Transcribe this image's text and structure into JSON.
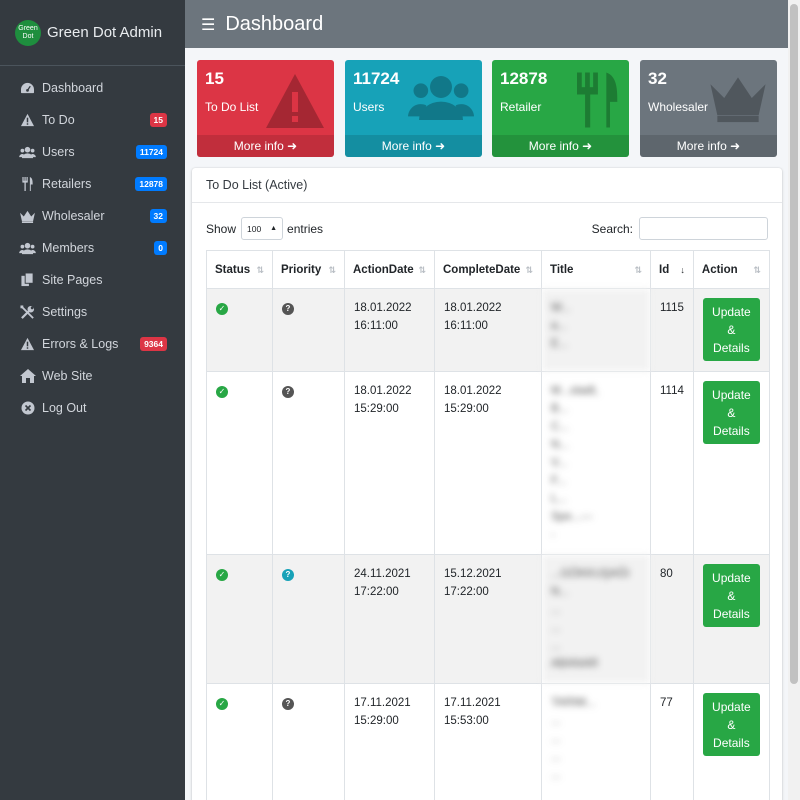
{
  "brand": {
    "name": "Green Dot Admin",
    "logo_line1": "Green",
    "logo_line2": "Dot"
  },
  "sidebar": {
    "items": [
      {
        "label": "Dashboard",
        "icon": "dashboard-gauge-icon",
        "badge": ""
      },
      {
        "label": "To Do",
        "icon": "warning-icon",
        "badge": "15",
        "badge_color": "#dc3545"
      },
      {
        "label": "Users",
        "icon": "users-icon",
        "badge": "11724",
        "badge_color": "#007bff"
      },
      {
        "label": "Retailers",
        "icon": "utensils-icon",
        "badge": "12878",
        "badge_color": "#007bff"
      },
      {
        "label": "Wholesaler",
        "icon": "crown-icon",
        "badge": "32",
        "badge_color": "#007bff"
      },
      {
        "label": "Members",
        "icon": "users-icon",
        "badge": "0",
        "badge_color": "#007bff"
      },
      {
        "label": "Site Pages",
        "icon": "copy-pages-icon",
        "badge": ""
      },
      {
        "label": "Settings",
        "icon": "tools-icon",
        "badge": ""
      },
      {
        "label": "Errors & Logs",
        "icon": "warning-icon",
        "badge": "9364",
        "badge_color": "#dc3545"
      },
      {
        "label": "Web Site",
        "icon": "home-icon",
        "badge": ""
      },
      {
        "label": "Log Out",
        "icon": "close-circle-icon",
        "badge": ""
      }
    ]
  },
  "header": {
    "title": "Dashboard"
  },
  "info_boxes": [
    {
      "count": "15",
      "label": "To Do List",
      "footer": "More info",
      "color": "#dc3545",
      "icon": "exclamation-triangle-icon"
    },
    {
      "count": "11724",
      "label": "Users",
      "footer": "More info",
      "color": "#17a2b8",
      "icon": "users-icon"
    },
    {
      "count": "12878",
      "label": "Retailer",
      "footer": "More info",
      "color": "#28a745",
      "icon": "utensils-icon"
    },
    {
      "count": "32",
      "label": "Wholesaler",
      "footer": "More info",
      "color": "#6c757d",
      "icon": "crown-icon"
    }
  ],
  "card": {
    "title": "To Do List (Active)",
    "show_label": "Show",
    "entries_value": "100",
    "entries_label": "entries",
    "search_label": "Search:"
  },
  "table": {
    "headers": [
      "Status",
      "Priority",
      "ActionDate",
      "CompleteDate",
      "Title",
      "Id",
      "Action"
    ],
    "rows": [
      {
        "status": "check",
        "priority": "question-dark",
        "action_date": "18.01.2022",
        "action_time": "16:11:00",
        "complete_date": "18.01.2022",
        "complete_time": "16:11:00",
        "title_lines": [
          "W...",
          "a...",
          "E..."
        ],
        "id": "1115",
        "action_line1": "Update",
        "action_line2": "&",
        "action_line3": "Details"
      },
      {
        "status": "check",
        "priority": "question-dark",
        "action_date": "18.01.2022",
        "action_time": "15:29:00",
        "complete_date": "18.01.2022",
        "complete_time": "15:29:00",
        "title_lines": [
          "M...stadt,",
          "B...",
          "C...",
          "N...",
          "V...",
          "F...",
          "L...",
          "Spe...---",
          "-"
        ],
        "id": "1114",
        "action_line1": "Update",
        "action_line2": "&",
        "action_line3": "Details"
      },
      {
        "status": "check",
        "priority": "question-teal",
        "action_date": "24.11.2021",
        "action_time": "17:22:00",
        "complete_date": "15.12.2021",
        "complete_time": "17:22:00",
        "title_lines": [
          "...GÖKKUŞAĞI",
          "N...",
          "...",
          "...",
          "...",
          "ABANAR"
        ],
        "id": "80",
        "action_line1": "Update",
        "action_line2": "&",
        "action_line3": "Details"
      },
      {
        "status": "check",
        "priority": "question-dark",
        "action_date": "17.11.2021",
        "action_time": "15:29:00",
        "complete_date": "17.11.2021",
        "complete_time": "15:53:00",
        "title_lines": [
          "TARIM...",
          "...",
          "...",
          "...",
          "..."
        ],
        "id": "77",
        "action_line1": "Update",
        "action_line2": "&",
        "action_line3": "Details"
      }
    ]
  }
}
